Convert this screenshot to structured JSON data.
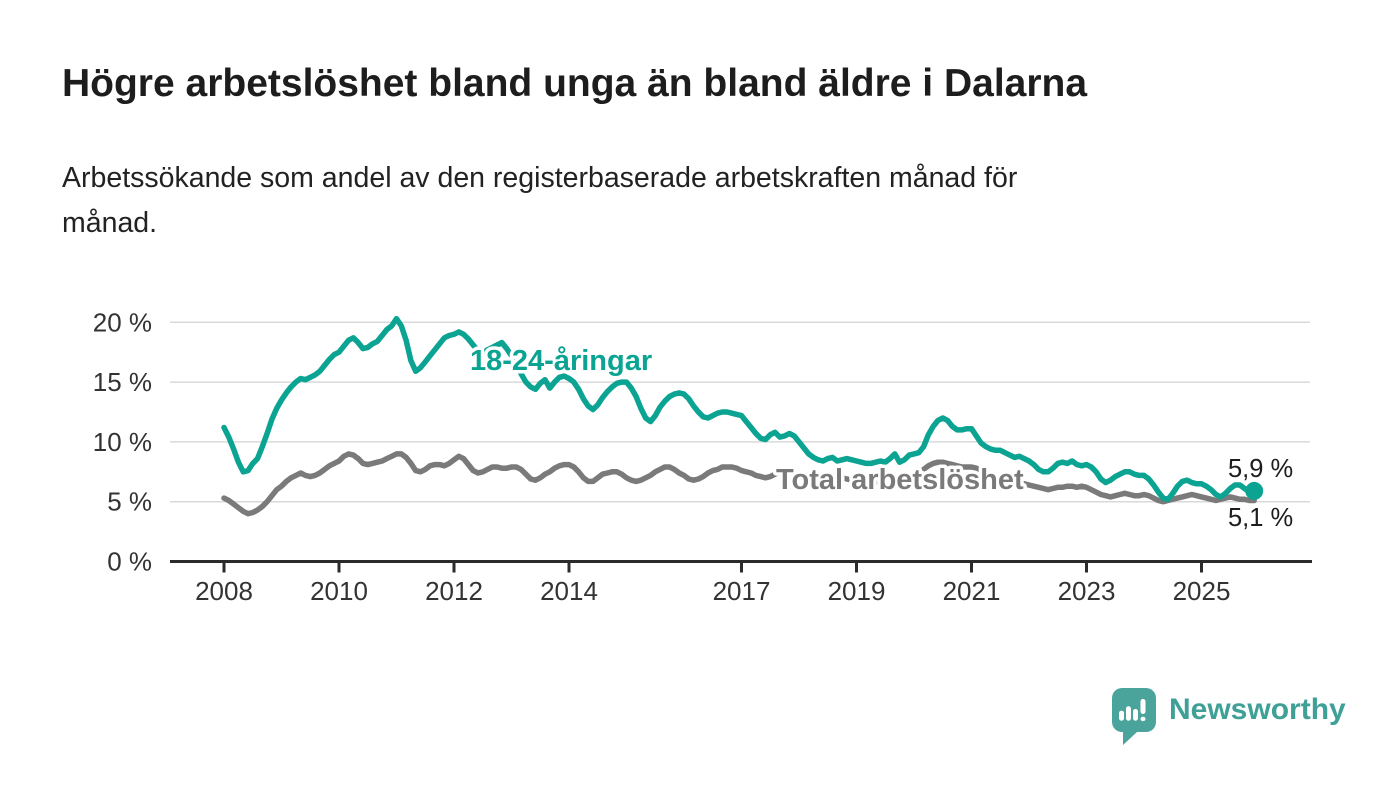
{
  "header": {
    "title": "Högre arbetslöshet bland unga än bland äldre i Dalarna",
    "subtitle_lines": [
      "Arbetssökande som andel av den registerbaserade arbetskraften månad för",
      "månad."
    ]
  },
  "chart_data": {
    "type": "line",
    "unit": "%",
    "frequency": "monthly",
    "x_start": "2008-01",
    "x_end": "2025-12",
    "x_tick_years": [
      2008,
      2010,
      2012,
      2014,
      2017,
      2019,
      2021,
      2023,
      2025
    ],
    "x_tick_labels": [
      "2008",
      "2010",
      "2012",
      "2014",
      "2017",
      "2019",
      "2021",
      "2023",
      "2025"
    ],
    "y_ticks": [
      0,
      5,
      10,
      15,
      20
    ],
    "y_tick_labels": [
      "0 %",
      "5 %",
      "10 %",
      "15 %",
      "20 %"
    ],
    "ylim": [
      0,
      21
    ],
    "grid": true,
    "legend": "inline-labels",
    "series": [
      {
        "name": "18-24-åringar",
        "color": "#0ba392",
        "end_label": "5,9 %",
        "end_dot": true,
        "values": [
          11.2,
          10.4,
          9.4,
          8.3,
          7.5,
          7.6,
          8.2,
          8.6,
          9.6,
          10.7,
          11.9,
          12.8,
          13.5,
          14.1,
          14.6,
          15.0,
          15.3,
          15.2,
          15.4,
          15.6,
          15.9,
          16.4,
          16.9,
          17.3,
          17.5,
          18.0,
          18.5,
          18.7,
          18.3,
          17.8,
          17.9,
          18.2,
          18.4,
          18.9,
          19.4,
          19.7,
          20.3,
          19.7,
          18.5,
          16.8,
          15.9,
          16.2,
          16.7,
          17.2,
          17.7,
          18.2,
          18.7,
          18.9,
          19.0,
          19.2,
          19.0,
          18.6,
          18.1,
          17.6,
          17.4,
          17.7,
          17.9,
          18.1,
          18.3,
          17.8,
          17.2,
          16.5,
          15.7,
          15.0,
          14.6,
          14.4,
          14.9,
          15.2,
          14.5,
          15.0,
          15.4,
          15.5,
          15.3,
          15.0,
          14.4,
          13.6,
          13.0,
          12.7,
          13.1,
          13.7,
          14.2,
          14.6,
          14.9,
          15.0,
          15.0,
          14.5,
          13.8,
          12.8,
          12.0,
          11.7,
          12.2,
          12.9,
          13.4,
          13.8,
          14.0,
          14.1,
          14.0,
          13.6,
          13.0,
          12.5,
          12.1,
          12.0,
          12.2,
          12.4,
          12.5,
          12.5,
          12.4,
          12.3,
          12.2,
          11.7,
          11.2,
          10.7,
          10.3,
          10.2,
          10.6,
          10.8,
          10.4,
          10.5,
          10.7,
          10.5,
          10.0,
          9.5,
          9.0,
          8.7,
          8.5,
          8.4,
          8.6,
          8.7,
          8.4,
          8.5,
          8.6,
          8.5,
          8.4,
          8.3,
          8.2,
          8.2,
          8.3,
          8.4,
          8.3,
          8.6,
          9.0,
          8.3,
          8.5,
          8.9,
          9.0,
          9.1,
          9.6,
          10.6,
          11.3,
          11.8,
          12.0,
          11.8,
          11.3,
          11.0,
          11.0,
          11.1,
          11.1,
          10.5,
          9.9,
          9.6,
          9.4,
          9.3,
          9.3,
          9.1,
          8.9,
          8.7,
          8.8,
          8.6,
          8.4,
          8.1,
          7.7,
          7.5,
          7.5,
          7.8,
          8.2,
          8.3,
          8.2,
          8.4,
          8.1,
          8.0,
          8.1,
          7.9,
          7.5,
          6.9,
          6.6,
          6.8,
          7.1,
          7.3,
          7.5,
          7.5,
          7.3,
          7.2,
          7.2,
          6.9,
          6.4,
          5.8,
          5.3,
          5.2,
          5.7,
          6.3,
          6.7,
          6.8,
          6.6,
          6.5,
          6.5,
          6.3,
          6.0,
          5.6,
          5.4,
          5.7,
          6.1,
          6.4,
          6.4,
          6.1,
          5.8,
          5.9
        ]
      },
      {
        "name": "Total arbetslöshet",
        "color": "#7a7a7a",
        "end_label": "5,1 %",
        "end_dot": false,
        "values": [
          5.3,
          5.1,
          4.8,
          4.5,
          4.2,
          4.0,
          4.1,
          4.3,
          4.6,
          5.0,
          5.5,
          6.0,
          6.3,
          6.7,
          7.0,
          7.2,
          7.4,
          7.2,
          7.1,
          7.2,
          7.4,
          7.7,
          8.0,
          8.2,
          8.4,
          8.8,
          9.0,
          8.9,
          8.6,
          8.2,
          8.1,
          8.2,
          8.3,
          8.4,
          8.6,
          8.8,
          9.0,
          9.0,
          8.7,
          8.2,
          7.6,
          7.5,
          7.7,
          8.0,
          8.1,
          8.1,
          8.0,
          8.2,
          8.5,
          8.8,
          8.6,
          8.1,
          7.6,
          7.4,
          7.5,
          7.7,
          7.9,
          7.9,
          7.8,
          7.8,
          7.9,
          7.9,
          7.7,
          7.3,
          6.9,
          6.8,
          7.0,
          7.3,
          7.5,
          7.8,
          8.0,
          8.1,
          8.1,
          7.9,
          7.5,
          7.0,
          6.7,
          6.7,
          7.0,
          7.3,
          7.4,
          7.5,
          7.5,
          7.3,
          7.0,
          6.8,
          6.7,
          6.8,
          7.0,
          7.2,
          7.5,
          7.7,
          7.9,
          7.9,
          7.7,
          7.4,
          7.2,
          6.9,
          6.8,
          6.9,
          7.1,
          7.4,
          7.6,
          7.7,
          7.9,
          7.9,
          7.9,
          7.8,
          7.6,
          7.5,
          7.4,
          7.2,
          7.1,
          7.0,
          7.1,
          7.3,
          7.5,
          7.6,
          7.5,
          7.4,
          7.3,
          7.2,
          7.0,
          6.9,
          6.8,
          6.7,
          6.8,
          6.9,
          7.0,
          7.0,
          6.9,
          6.8,
          6.7,
          6.6,
          6.5,
          6.5,
          6.6,
          6.7,
          6.9,
          7.0,
          7.0,
          6.9,
          6.9,
          7.0,
          7.1,
          7.3,
          7.7,
          8.0,
          8.2,
          8.3,
          8.3,
          8.2,
          8.1,
          8.0,
          7.9,
          7.9,
          7.9,
          7.8,
          7.6,
          7.4,
          7.2,
          7.1,
          7.0,
          6.9,
          6.8,
          6.7,
          6.6,
          6.5,
          6.4,
          6.3,
          6.2,
          6.1,
          6.0,
          6.1,
          6.2,
          6.2,
          6.3,
          6.3,
          6.2,
          6.3,
          6.2,
          6.0,
          5.8,
          5.6,
          5.5,
          5.4,
          5.5,
          5.6,
          5.7,
          5.6,
          5.5,
          5.5,
          5.6,
          5.5,
          5.3,
          5.1,
          5.0,
          5.1,
          5.2,
          5.3,
          5.4,
          5.5,
          5.6,
          5.5,
          5.4,
          5.3,
          5.2,
          5.1,
          5.2,
          5.3,
          5.4,
          5.3,
          5.2,
          5.2,
          5.1,
          5.1
        ]
      }
    ]
  },
  "branding": {
    "name": "Newsworthy"
  },
  "colors": {
    "accent_teal": "#0ba392",
    "series_gray": "#7a7a7a",
    "text_dark": "#1d1d1d",
    "axis_text": "#333333",
    "grid": "#d9d9d9",
    "axis_line": "#2b2b2b",
    "brand_bubble": "#4ba49c",
    "brand_text": "#3fa098"
  }
}
